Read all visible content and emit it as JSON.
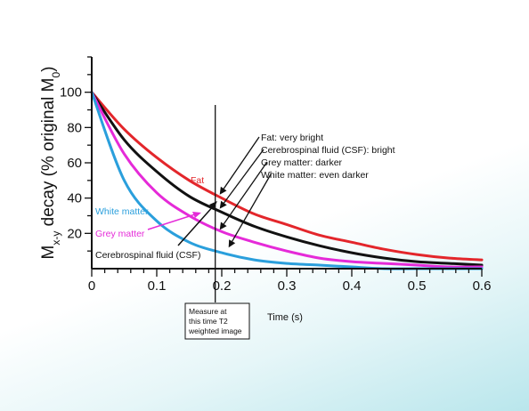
{
  "chart_data": {
    "type": "line",
    "title": "",
    "xlabel": "Time (s)",
    "ylabel": "Mx-y decay (% original M0)",
    "ylabel_parts": {
      "main": "M",
      "sub_xy": "x-y",
      "middle": " decay (% original M",
      "sub_0": "0",
      "end": ")"
    },
    "xlim": [
      0,
      0.6
    ],
    "ylim": [
      0,
      120
    ],
    "xticks": [
      0,
      0.1,
      0.2,
      0.3,
      0.4,
      0.5,
      0.6
    ],
    "xtick_labels": [
      "0",
      "0.1",
      "0.2",
      "0.3",
      "0.4",
      "0.5",
      "0.6"
    ],
    "yticks": [
      20,
      40,
      60,
      80,
      100
    ],
    "ytick_labels": [
      "20",
      "40",
      "60",
      "80",
      "100"
    ],
    "x": [
      0,
      0.05,
      0.1,
      0.15,
      0.2,
      0.25,
      0.3,
      0.35,
      0.4,
      0.45,
      0.5,
      0.55,
      0.6
    ],
    "series": [
      {
        "name": "Fat",
        "color": "#e3262b",
        "values": [
          100,
          79,
          63,
          50,
          40,
          31,
          25,
          19,
          15,
          11,
          8,
          6,
          5
        ]
      },
      {
        "name": "Cerebrospinal fluid (CSF)",
        "color": "#111111",
        "values": [
          100,
          73,
          55,
          41,
          32,
          24,
          18,
          13,
          9,
          6,
          4,
          3,
          2
        ]
      },
      {
        "name": "Grey matter",
        "color": "#e52ad8",
        "values": [
          100,
          65,
          43,
          30,
          21,
          15,
          10,
          6,
          4,
          3,
          2,
          1,
          1
        ]
      },
      {
        "name": "White matter",
        "color": "#2a9fdc",
        "values": [
          100,
          50,
          27,
          15,
          9,
          5,
          3,
          2,
          1,
          0,
          0,
          0,
          0
        ]
      }
    ],
    "grid": false,
    "legend": "none"
  },
  "annotations": {
    "measure_box": [
      "Measure at",
      "this time T2",
      "weighted image"
    ],
    "measure_time": 0.19,
    "brightness_notes": [
      "Fat: very bright",
      "Cerebrospinal fluid (CSF): bright",
      "Grey matter: darker",
      "White matter: even darker"
    ]
  }
}
